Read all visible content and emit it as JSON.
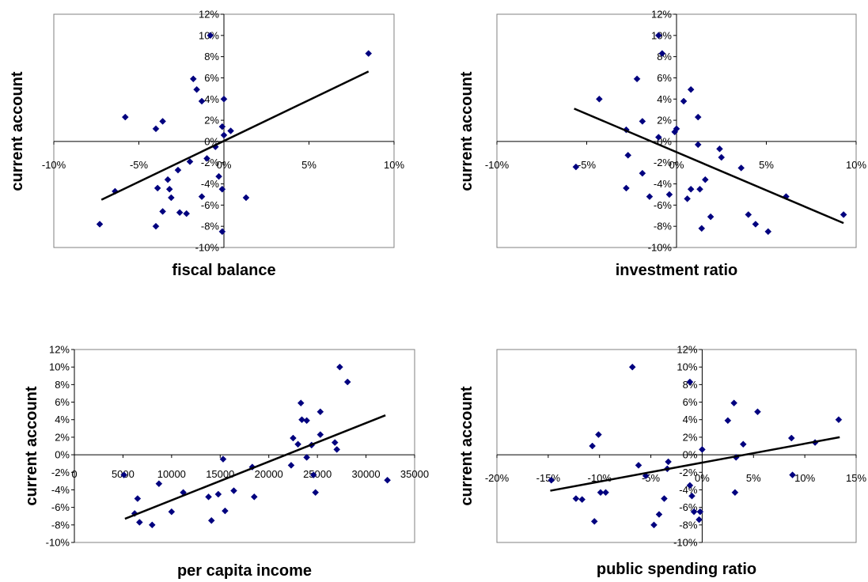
{
  "colors": {
    "point": "#00007f",
    "line": "#000000",
    "frame": "#808080"
  },
  "chart_data": [
    {
      "type": "scatter",
      "xlabel": "fiscal balance",
      "ylabel": "current account",
      "xlim": [
        -0.1,
        0.1
      ],
      "ylim": [
        -0.1,
        0.12
      ],
      "x_ticks": [
        -0.1,
        -0.05,
        0,
        0.05,
        0.1
      ],
      "x_tick_labels": [
        "-10%",
        "-5%",
        "0%",
        "5%",
        "10%"
      ],
      "y_ticks": [
        -0.1,
        -0.08,
        -0.06,
        -0.04,
        -0.02,
        0,
        0.02,
        0.04,
        0.06,
        0.08,
        0.1,
        0.12
      ],
      "y_tick_labels": [
        "-10%",
        "-8%",
        "-6%",
        "-4%",
        "-2%",
        "0%",
        "2%",
        "4%",
        "6%",
        "8%",
        "10%",
        "12%"
      ],
      "axis_crossing": {
        "x": 0,
        "y": 0
      },
      "y_tick_side": "inside",
      "x_tick_side": "below",
      "grid": false,
      "trendline": [
        [
          -0.072,
          -0.055
        ],
        [
          0.085,
          0.066
        ]
      ],
      "points": [
        [
          -0.073,
          -0.078
        ],
        [
          -0.064,
          -0.047
        ],
        [
          -0.058,
          0.023
        ],
        [
          -0.04,
          0.012
        ],
        [
          -0.039,
          -0.044
        ],
        [
          -0.036,
          0.019
        ],
        [
          -0.036,
          -0.066
        ],
        [
          -0.033,
          -0.036
        ],
        [
          -0.032,
          -0.045
        ],
        [
          -0.031,
          -0.053
        ],
        [
          -0.027,
          -0.027
        ],
        [
          -0.026,
          -0.067
        ],
        [
          -0.04,
          -0.08
        ],
        [
          -0.022,
          -0.068
        ],
        [
          -0.02,
          -0.019
        ],
        [
          -0.018,
          0.059
        ],
        [
          -0.016,
          0.049
        ],
        [
          -0.013,
          0.038
        ],
        [
          -0.013,
          -0.052
        ],
        [
          -0.01,
          -0.016
        ],
        [
          -0.008,
          0.1
        ],
        [
          -0.005,
          -0.005
        ],
        [
          -0.003,
          -0.033
        ],
        [
          -0.001,
          0.014
        ],
        [
          0.0,
          0.04
        ],
        [
          0.0,
          0.006
        ],
        [
          -0.001,
          -0.045
        ],
        [
          0.004,
          0.01
        ],
        [
          0.013,
          -0.053
        ],
        [
          0.085,
          0.083
        ],
        [
          -0.001,
          -0.085
        ]
      ]
    },
    {
      "type": "scatter",
      "xlabel": "investment ratio",
      "ylabel": "current account",
      "xlim": [
        -0.1,
        0.1
      ],
      "ylim": [
        -0.1,
        0.12
      ],
      "x_ticks": [
        -0.1,
        -0.05,
        0,
        0.05,
        0.1
      ],
      "x_tick_labels": [
        "-10%",
        "-5%",
        "0%",
        "5%",
        "10%"
      ],
      "y_ticks": [
        -0.1,
        -0.08,
        -0.06,
        -0.04,
        -0.02,
        0,
        0.02,
        0.04,
        0.06,
        0.08,
        0.1,
        0.12
      ],
      "y_tick_labels": [
        "-10%",
        "-8%",
        "-6%",
        "-4%",
        "-2%",
        "0%",
        "2%",
        "4%",
        "6%",
        "8%",
        "10%",
        "12%"
      ],
      "axis_crossing": {
        "x": 0,
        "y": 0
      },
      "y_tick_side": "inside",
      "x_tick_side": "below",
      "grid": false,
      "trendline": [
        [
          -0.057,
          0.031
        ],
        [
          0.093,
          -0.077
        ]
      ],
      "points": [
        [
          -0.056,
          -0.024
        ],
        [
          -0.043,
          0.04
        ],
        [
          -0.028,
          0.011
        ],
        [
          -0.027,
          -0.013
        ],
        [
          -0.028,
          -0.044
        ],
        [
          -0.022,
          0.059
        ],
        [
          -0.019,
          0.019
        ],
        [
          -0.019,
          -0.03
        ],
        [
          -0.015,
          -0.052
        ],
        [
          -0.01,
          0.004
        ],
        [
          -0.01,
          0.1
        ],
        [
          -0.008,
          0.083
        ],
        [
          -0.004,
          -0.05
        ],
        [
          -0.001,
          0.009
        ],
        [
          0.0,
          0.012
        ],
        [
          0.004,
          0.038
        ],
        [
          0.006,
          -0.054
        ],
        [
          0.008,
          -0.045
        ],
        [
          0.008,
          0.049
        ],
        [
          0.012,
          0.023
        ],
        [
          0.012,
          -0.003
        ],
        [
          0.013,
          -0.045
        ],
        [
          0.014,
          -0.082
        ],
        [
          0.016,
          -0.036
        ],
        [
          0.019,
          -0.071
        ],
        [
          0.024,
          -0.007
        ],
        [
          0.025,
          -0.015
        ],
        [
          0.036,
          -0.025
        ],
        [
          0.04,
          -0.069
        ],
        [
          0.044,
          -0.078
        ],
        [
          0.051,
          -0.085
        ],
        [
          0.061,
          -0.052
        ],
        [
          0.093,
          -0.069
        ]
      ]
    },
    {
      "type": "scatter",
      "xlabel": "per capita income",
      "ylabel": "current account",
      "xlim": [
        0,
        35000
      ],
      "ylim": [
        -0.1,
        0.12
      ],
      "x_ticks": [
        0,
        5000,
        10000,
        15000,
        20000,
        25000,
        30000,
        35000
      ],
      "x_tick_labels": [
        "0",
        "5000",
        "10000",
        "15000",
        "20000",
        "25000",
        "30000",
        "35000"
      ],
      "y_ticks": [
        -0.1,
        -0.08,
        -0.06,
        -0.04,
        -0.02,
        0,
        0.02,
        0.04,
        0.06,
        0.08,
        0.1,
        0.12
      ],
      "y_tick_labels": [
        "-10%",
        "-8%",
        "-6%",
        "-4%",
        "-2%",
        "0%",
        "2%",
        "4%",
        "6%",
        "8%",
        "10%",
        "12%"
      ],
      "axis_crossing": {
        "x": 0,
        "y": 0
      },
      "y_tick_side": "outside",
      "x_tick_side": "on-axis",
      "grid": false,
      "trendline": [
        [
          5200,
          -0.073
        ],
        [
          32000,
          0.045
        ]
      ],
      "points": [
        [
          5100,
          -0.023
        ],
        [
          6200,
          -0.067
        ],
        [
          6500,
          -0.05
        ],
        [
          6700,
          -0.077
        ],
        [
          8000,
          -0.08
        ],
        [
          8700,
          -0.033
        ],
        [
          10000,
          -0.065
        ],
        [
          11200,
          -0.043
        ],
        [
          13800,
          -0.048
        ],
        [
          14100,
          -0.075
        ],
        [
          14800,
          -0.045
        ],
        [
          15300,
          -0.005
        ],
        [
          15500,
          -0.064
        ],
        [
          16400,
          -0.041
        ],
        [
          18300,
          -0.014
        ],
        [
          18500,
          -0.048
        ],
        [
          22300,
          -0.012
        ],
        [
          22500,
          0.019
        ],
        [
          23000,
          0.012
        ],
        [
          23300,
          0.059
        ],
        [
          23400,
          0.04
        ],
        [
          23900,
          0.039
        ],
        [
          23900,
          -0.003
        ],
        [
          24400,
          0.011
        ],
        [
          24600,
          -0.023
        ],
        [
          24800,
          -0.043
        ],
        [
          25300,
          0.049
        ],
        [
          25300,
          0.023
        ],
        [
          26800,
          0.014
        ],
        [
          27000,
          0.006
        ],
        [
          27300,
          0.1
        ],
        [
          28100,
          0.083
        ],
        [
          32200,
          -0.029
        ]
      ]
    },
    {
      "type": "scatter",
      "xlabel": "public spending ratio",
      "ylabel": "current account",
      "xlim": [
        -0.2,
        0.15
      ],
      "ylim": [
        -0.1,
        0.12
      ],
      "x_ticks": [
        -0.2,
        -0.15,
        -0.1,
        -0.05,
        0,
        0.05,
        0.1,
        0.15
      ],
      "x_tick_labels": [
        "-20%",
        "-15%",
        "-10%",
        "-5%",
        "0%",
        "5%",
        "10%",
        "15%"
      ],
      "y_ticks": [
        -0.1,
        -0.08,
        -0.06,
        -0.04,
        -0.02,
        0,
        0.02,
        0.04,
        0.06,
        0.08,
        0.1,
        0.12
      ],
      "y_tick_labels": [
        "-10%",
        "-8%",
        "-6%",
        "-4%",
        "-2%",
        "0%",
        "2%",
        "4%",
        "6%",
        "8%",
        "10%",
        "12%"
      ],
      "axis_crossing": {
        "x": 0,
        "y": 0
      },
      "y_tick_side": "inside",
      "x_tick_side": "below",
      "grid": false,
      "trendline": [
        [
          -0.148,
          -0.041
        ],
        [
          0.134,
          0.02
        ]
      ],
      "points": [
        [
          -0.147,
          -0.029
        ],
        [
          -0.123,
          -0.05
        ],
        [
          -0.117,
          -0.051
        ],
        [
          -0.107,
          0.01
        ],
        [
          -0.105,
          -0.076
        ],
        [
          -0.101,
          0.023
        ],
        [
          -0.099,
          -0.043
        ],
        [
          -0.094,
          -0.043
        ],
        [
          -0.068,
          0.1
        ],
        [
          -0.062,
          -0.012
        ],
        [
          -0.055,
          -0.024
        ],
        [
          -0.047,
          -0.08
        ],
        [
          -0.042,
          -0.068
        ],
        [
          -0.037,
          -0.05
        ],
        [
          -0.034,
          -0.016
        ],
        [
          -0.033,
          -0.008
        ],
        [
          -0.012,
          -0.035
        ],
        [
          -0.012,
          0.083
        ],
        [
          -0.01,
          -0.047
        ],
        [
          -0.008,
          -0.065
        ],
        [
          -0.003,
          -0.074
        ],
        [
          0.0,
          0.006
        ],
        [
          -0.002,
          -0.065
        ],
        [
          0.025,
          0.039
        ],
        [
          0.031,
          0.059
        ],
        [
          0.032,
          -0.043
        ],
        [
          0.033,
          -0.003
        ],
        [
          0.04,
          0.012
        ],
        [
          0.054,
          0.049
        ],
        [
          0.087,
          0.019
        ],
        [
          0.088,
          -0.023
        ],
        [
          0.11,
          0.014
        ],
        [
          0.133,
          0.04
        ]
      ]
    }
  ]
}
